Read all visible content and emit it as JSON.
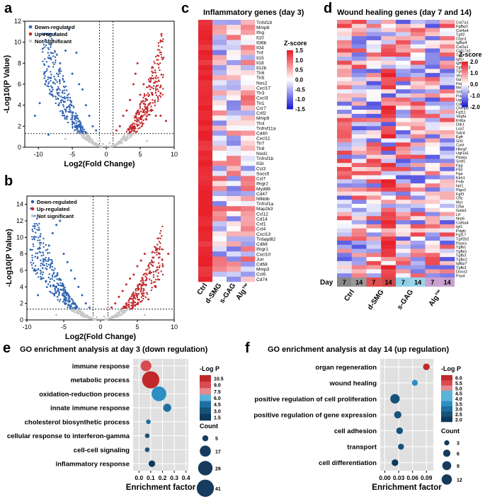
{
  "panel_letters": {
    "a": "a",
    "b": "b",
    "c": "c",
    "d": "d",
    "e": "e",
    "f": "f"
  },
  "legend": {
    "down": "Down-regulated",
    "up": "Up-regulated",
    "ns": "Not significant"
  },
  "colors": {
    "down": "#2e62b0",
    "up": "#c0282a",
    "ns": "#c8c8c8",
    "heat_high": "#e8202a",
    "heat_mid": "#ffffff",
    "heat_low": "#1c1cd6",
    "dot_bg": "#e0e0e0"
  },
  "chart_data": [
    {
      "type": "scatter",
      "panel": "a",
      "title": "",
      "xlabel": "Log2(Fold Change)",
      "ylabel": "-Log10(P Value)",
      "xlim": [
        -12,
        10
      ],
      "ylim": [
        0,
        12
      ],
      "xticks": [
        -10,
        -5,
        0,
        5,
        10
      ],
      "yticks": [
        0,
        2,
        4,
        6,
        8,
        10,
        12
      ],
      "thresholds": {
        "fc": 1,
        "p_line": 1.3
      },
      "series": [
        {
          "name": "Down-regulated",
          "pts": [
            [
              -10.5,
              3
            ],
            [
              -9.8,
              4.2
            ],
            [
              -9,
              6
            ],
            [
              -8.2,
              8.5
            ],
            [
              -7.6,
              10.8
            ],
            [
              -6.8,
              8
            ],
            [
              -6,
              9.2
            ],
            [
              -5.5,
              11.2
            ],
            [
              -5,
              7
            ],
            [
              -4.4,
              9
            ],
            [
              -4,
              6
            ],
            [
              -3.5,
              5.5
            ],
            [
              -3,
              4
            ],
            [
              -2.5,
              3
            ],
            [
              -2,
              2
            ],
            [
              -1.5,
              1.6
            ],
            [
              -8.5,
              1.2
            ],
            [
              -7,
              4
            ],
            [
              -6.2,
              3
            ],
            [
              -5,
              3
            ]
          ]
        },
        {
          "name": "Up-regulated",
          "pts": [
            [
              1.5,
              1.6
            ],
            [
              2,
              2
            ],
            [
              2.5,
              3
            ],
            [
              3,
              3.5
            ],
            [
              3.5,
              4.5
            ],
            [
              4,
              6
            ],
            [
              4.3,
              7
            ],
            [
              4.6,
              8
            ],
            [
              5,
              5
            ],
            [
              5.5,
              6
            ],
            [
              6,
              4.5
            ],
            [
              6.8,
              5
            ],
            [
              7.3,
              3
            ],
            [
              8,
              3
            ],
            [
              8.8,
              2.5
            ]
          ]
        },
        {
          "name": "Not significant",
          "pts": [
            [
              -1,
              0.6
            ],
            [
              -0.5,
              0.3
            ],
            [
              0,
              0.1
            ],
            [
              0.5,
              0.4
            ],
            [
              1,
              0.7
            ],
            [
              -3,
              0.8
            ],
            [
              3,
              0.8
            ],
            [
              -6,
              0.8
            ],
            [
              6,
              0.6
            ]
          ]
        }
      ]
    },
    {
      "type": "scatter",
      "panel": "b",
      "title": "",
      "xlabel": "Log2(Fold Change)",
      "ylabel": "-Log10(P Value)",
      "xlim": [
        -10,
        10
      ],
      "ylim": [
        0,
        15
      ],
      "xticks": [
        -10,
        -5,
        0,
        5,
        10
      ],
      "yticks": [
        0,
        2,
        4,
        6,
        8,
        10,
        12,
        14
      ],
      "thresholds": {
        "fc": 1,
        "p_line": 1.3
      },
      "series": [
        {
          "name": "Down-regulated",
          "pts": [
            [
              -9.5,
              8.5
            ],
            [
              -9,
              6
            ],
            [
              -8,
              5
            ],
            [
              -7,
              9
            ],
            [
              -6.5,
              10.5
            ],
            [
              -6,
              11.5
            ],
            [
              -5.5,
              12
            ],
            [
              -5,
              8
            ],
            [
              -4.5,
              7
            ],
            [
              -4,
              6
            ],
            [
              -3.5,
              5
            ],
            [
              -3,
              4
            ],
            [
              -2.5,
              3
            ],
            [
              -2,
              2
            ],
            [
              -1.5,
              1.5
            ],
            [
              -8.5,
              3
            ]
          ]
        },
        {
          "name": "Up-regulated",
          "pts": [
            [
              1.5,
              1.5
            ],
            [
              2,
              2
            ],
            [
              2.5,
              2.8
            ],
            [
              3,
              3.5
            ],
            [
              3.5,
              4.3
            ],
            [
              4,
              5
            ],
            [
              4.5,
              5.5
            ],
            [
              5,
              6.5
            ],
            [
              5.5,
              7.2
            ],
            [
              6,
              8
            ],
            [
              7,
              7
            ],
            [
              8,
              8
            ],
            [
              9.2,
              8
            ],
            [
              7.5,
              4
            ],
            [
              6.5,
              2.5
            ]
          ]
        },
        {
          "name": "Not significant",
          "pts": [
            [
              -1,
              0.6
            ],
            [
              -0.5,
              0.3
            ],
            [
              0,
              0.1
            ],
            [
              0.5,
              0.4
            ],
            [
              1,
              0.7
            ],
            [
              -3,
              0.8
            ],
            [
              3,
              0.8
            ],
            [
              -6,
              0.6
            ],
            [
              6,
              0.6
            ]
          ]
        }
      ]
    },
    {
      "type": "heatmap",
      "panel": "c",
      "title": "Inflammatory genes (day 3)",
      "columns": [
        "Ctrl",
        "d-SMG",
        "s-GAG",
        "Alg™"
      ],
      "rows": [
        "Tnfsf18",
        "Mmp8",
        "Ifng",
        "Il10",
        "Il36b",
        "Il34",
        "Tnf",
        "Il15",
        "Il18",
        "Il12b",
        "Tlr6",
        "Tlr5",
        "Nos2",
        "Cxcl17",
        "Tlr3",
        "Cxcl3",
        "Tlr1",
        "Ccr7",
        "Crlf2",
        "Mmp9",
        "Tlr4",
        "Tnfrsf11a",
        "Cd40",
        "Cxcl11",
        "Tlr7",
        "Tlr8",
        "Nod1",
        "Tnfrsf1b",
        "Il1b",
        "Ccl3",
        "Socs5",
        "Ccl7",
        "Ifngr2",
        "Myd88",
        "Cd47",
        "Nfkbib",
        "Tnfrsf1a",
        "Map2k3",
        "Ccl12",
        "Cd14",
        "Csf1",
        "Ccl4",
        "Cxcl13",
        "Tnfaip8l2",
        "Cd68",
        "Ifngr1",
        "Cxcl10",
        "Jun",
        "Cd68",
        "Mmp3",
        "Ccl6",
        "Cd74"
      ],
      "legend_title": "Z-score",
      "scale": [
        -1.5,
        1.5
      ],
      "scale_ticks": [
        "1.5",
        "1.0",
        "0.5",
        "0.0",
        "-0.5",
        "-1.0",
        "-1.5"
      ]
    },
    {
      "type": "heatmap",
      "panel": "d",
      "title": "Wound healing genes (day 7 and 14)",
      "columns": [
        "Ctrl 7",
        "Ctrl 14",
        "d-SMG 7",
        "d-SMG 14",
        "s-GAG 7",
        "s-GAG 14",
        "Alg™ 7",
        "Alg™ 14"
      ],
      "day_label": "Day",
      "day_values": [
        "7",
        "14",
        "7",
        "14",
        "7",
        "14",
        "7",
        "14"
      ],
      "group_labels": [
        "Ctrl",
        "d-SMG",
        "s-GAG",
        "Alg™"
      ],
      "rows": [
        "Col7a1",
        "Fgfbp1",
        "Col4a4",
        "Tgif2",
        "Ctgn1",
        "Igfbp4",
        "Col2a1",
        "Col17a1",
        "Tgfa",
        "Igf1r",
        "Igfbp3",
        "Tgfb2p2",
        "Tgif1",
        "Vegfb",
        "Gpx1",
        "Pepd",
        "Mmp12",
        "St3gal4",
        "Prkcd",
        "Ugt1a2",
        "Cdk2",
        "Chmp5",
        "Fgf11",
        "Vegfa",
        "Krt6a",
        "Ddr1",
        "Lrp2",
        "Sdc4",
        "Egfr",
        "Gli1",
        "Cast",
        "Hbegf",
        "Ugt1a1",
        "Pparg",
        "Sraf1",
        "Fgg",
        "Flt3",
        "Fga",
        "Klrh1",
        "Fntb",
        "Nrf1",
        "Ptgs2",
        "Fgf3",
        "Cfly",
        "Myc",
        "Cflar",
        "Gata1",
        "Lif",
        "Nrp6",
        "Col6a4",
        "Igf1",
        "Pdgfc",
        "Fgf17",
        "Tgif2b2",
        "Ppara",
        "Tgfb1",
        "Tgfbi1",
        "Tgfb3",
        "Tgfbr2",
        "Igfbp7",
        "Tgfb3",
        "Duox2",
        "Pax4"
      ],
      "legend_title": "Z-score",
      "scale": [
        -2.0,
        2.0
      ],
      "scale_ticks": [
        "2.0",
        "1.0",
        "0.0",
        "-1.0",
        "-2.0"
      ]
    },
    {
      "type": "scatter",
      "panel": "e",
      "title": "GO enrichment analysis at day 3 (down regulation)",
      "xlabel": "Enrichment factor",
      "xlim": [
        -0.05,
        0.42
      ],
      "xticks": [
        0.0,
        0.1,
        0.2,
        0.3,
        0.4
      ],
      "xtick_labels": [
        "0.0",
        "0.1",
        "0.2",
        "0.3",
        "0.4"
      ],
      "categories": [
        "immune response",
        "metabolic process",
        "oxidation-reduction process",
        "innate immune response",
        "cholesterol biosynthetic process",
        "cellular response to interferon-gamma",
        "cell-cell signaling",
        "inflammatory response"
      ],
      "enrichment": [
        0.06,
        0.1,
        0.17,
        0.24,
        0.08,
        0.07,
        0.07,
        0.11
      ],
      "neglogp": [
        9.5,
        10.5,
        5.5,
        4.0,
        3.5,
        3.0,
        3.0,
        1.5
      ],
      "count": [
        16,
        41,
        30,
        9,
        3,
        3,
        3,
        6
      ],
      "color_legend_title": "-Log P",
      "color_ticks": [
        "10.5",
        "9.0",
        "7.5",
        "6.0",
        "4.5",
        "3.0",
        "1.5"
      ],
      "size_legend_title": "Count",
      "size_ticks": [
        "5",
        "17",
        "29",
        "41"
      ]
    },
    {
      "type": "scatter",
      "panel": "f",
      "title": "GO enrichment analysis at day 14 (up regulation)",
      "xlabel": "Enrichment factor",
      "xlim": [
        -0.01,
        0.105
      ],
      "xticks": [
        0.0,
        0.03,
        0.06,
        0.09
      ],
      "xtick_labels": [
        "0.00",
        "0.03",
        "0.06",
        "0.09"
      ],
      "categories": [
        "organ regeneration",
        "wound healing",
        "positive regulation of cell proliferation",
        "positive regulation of gene expression",
        "cell adhesion",
        "transport",
        "cell differentiation"
      ],
      "enrichment": [
        0.09,
        0.065,
        0.022,
        0.028,
        0.032,
        0.035,
        0.022
      ],
      "neglogp": [
        6.0,
        3.5,
        2.3,
        2.3,
        2.3,
        2.3,
        2.0
      ],
      "count": [
        5,
        4,
        10,
        6,
        5,
        4,
        5
      ],
      "color_legend_title": "-Log P",
      "color_ticks": [
        "6.0",
        "5.5",
        "5.0",
        "4.5",
        "4.0",
        "3.5",
        "3.0",
        "2.5",
        "2.0"
      ],
      "size_legend_title": "Count",
      "size_ticks": [
        "3",
        "6",
        "9",
        "12"
      ]
    }
  ]
}
